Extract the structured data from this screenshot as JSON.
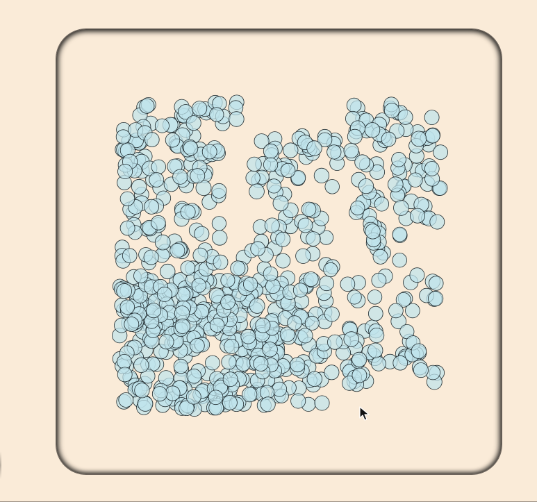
{
  "canvas": {
    "background": "#faebd8",
    "circle_fill": "#bfe3ec",
    "circle_fill_opacity": 0.72,
    "circle_stroke": "#1f2a2e"
  },
  "cursor": {
    "icon": "arrow-pointer-icon"
  }
}
